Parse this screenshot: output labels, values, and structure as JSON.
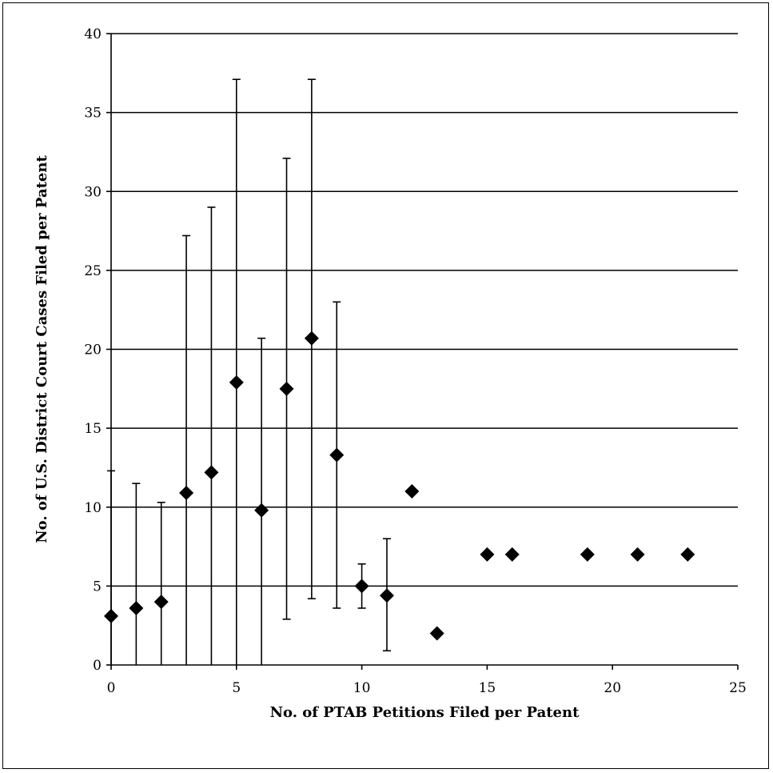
{
  "chart_data": {
    "type": "scatter",
    "title": "",
    "xlabel": "No. of PTAB Petitions Filed per Patent",
    "ylabel": "No. of U.S. District Court Cases Filed per Patent",
    "xlim": [
      0,
      25
    ],
    "ylim": [
      0,
      40
    ],
    "xticks": [
      0,
      5,
      10,
      15,
      20,
      25
    ],
    "yticks": [
      0,
      5,
      10,
      15,
      20,
      25,
      30,
      35,
      40
    ],
    "grid": "horizontal",
    "legend": "none",
    "marker": "diamond",
    "series": [
      {
        "points": [
          {
            "x": 0,
            "y": 3.1,
            "err_low": 0,
            "err_high": 12.3
          },
          {
            "x": 1,
            "y": 3.6,
            "err_low": 0,
            "err_high": 11.5
          },
          {
            "x": 2,
            "y": 4.0,
            "err_low": 0,
            "err_high": 10.3
          },
          {
            "x": 3,
            "y": 10.9,
            "err_low": 0,
            "err_high": 27.2
          },
          {
            "x": 4,
            "y": 12.2,
            "err_low": 0,
            "err_high": 29.0
          },
          {
            "x": 5,
            "y": 17.9,
            "err_low": 0,
            "err_high": 37.1
          },
          {
            "x": 6,
            "y": 9.8,
            "err_low": 0,
            "err_high": 20.7
          },
          {
            "x": 7,
            "y": 17.5,
            "err_low": 2.9,
            "err_high": 32.1
          },
          {
            "x": 8,
            "y": 20.7,
            "err_low": 4.2,
            "err_high": 37.1
          },
          {
            "x": 9,
            "y": 13.3,
            "err_low": 3.6,
            "err_high": 23.0
          },
          {
            "x": 10,
            "y": 5.0,
            "err_low": 3.6,
            "err_high": 6.4
          },
          {
            "x": 11,
            "y": 4.4,
            "err_low": 0.9,
            "err_high": 8.0
          },
          {
            "x": 12,
            "y": 11.0
          },
          {
            "x": 13,
            "y": 2.0
          },
          {
            "x": 15,
            "y": 7.0
          },
          {
            "x": 16,
            "y": 7.0
          },
          {
            "x": 19,
            "y": 7.0
          },
          {
            "x": 21,
            "y": 7.0
          },
          {
            "x": 23,
            "y": 7.0
          }
        ]
      }
    ]
  },
  "colors": {
    "marker": "#000000",
    "grid": "#000000",
    "background": "#ffffff"
  }
}
